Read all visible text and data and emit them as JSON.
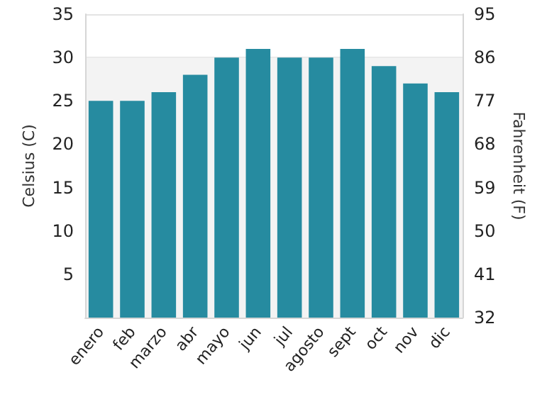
{
  "chart_data": {
    "type": "bar",
    "ylabel": "Celsius (C)",
    "y2label": "Fahrenheit (F)",
    "categories": [
      "enero",
      "feb",
      "marzo",
      "abr",
      "mayo",
      "jun",
      "jul",
      "agosto",
      "sept",
      "oct",
      "nov",
      "dic"
    ],
    "values": [
      25,
      25,
      26,
      28,
      30,
      31,
      30,
      30,
      31,
      29,
      27,
      26
    ],
    "color": "#268ba0",
    "ylim": [
      0,
      35
    ],
    "yticks": [
      5,
      10,
      15,
      20,
      25,
      30,
      35
    ],
    "y2lim": [
      32,
      95
    ],
    "y2ticks": [
      32,
      41,
      50,
      59,
      68,
      77,
      86,
      95
    ],
    "bands": [
      {
        "axis": "y",
        "from": 0,
        "to": 30,
        "color": "#f3f3f3"
      }
    ],
    "grid": "y"
  }
}
